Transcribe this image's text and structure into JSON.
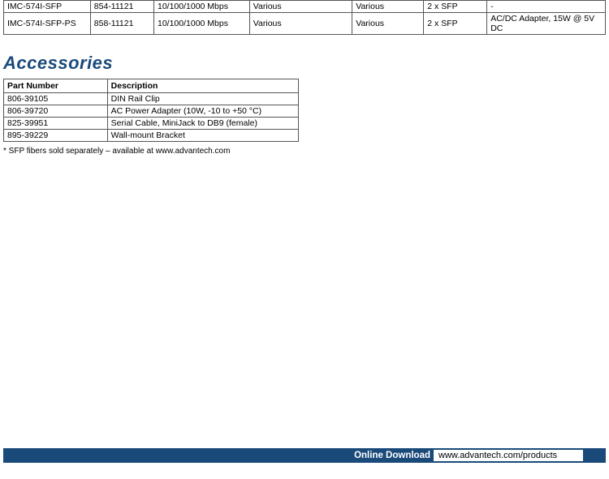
{
  "product_table": {
    "rows": [
      [
        "IMC-574I-SFP",
        "854-11121",
        "10/100/1000 Mbps",
        "Various",
        "Various",
        "2 x SFP",
        "-"
      ],
      [
        "IMC-574I-SFP-PS",
        "858-11121",
        "10/100/1000 Mbps",
        "Various",
        "Various",
        "2 x SFP",
        "AC/DC Adapter, 15W @ 5V DC"
      ]
    ]
  },
  "section_title": "Accessories",
  "accessories_table": {
    "headers": [
      "Part Number",
      "Description"
    ],
    "rows": [
      [
        "806-39105",
        "DIN Rail Clip"
      ],
      [
        "806-39720",
        "AC Power Adapter (10W, -10 to +50 °C)"
      ],
      [
        "825-39951",
        "Serial Cable, MiniJack to DB9 (female)"
      ],
      [
        "895-39229",
        "Wall-mount Bracket"
      ]
    ]
  },
  "footnote": "* SFP fibers sold separately – available at www.advantech.com",
  "footer": {
    "label": "Online Download",
    "url": "www.advantech.com/products"
  },
  "colors": {
    "brand_blue": "#1a4a7a",
    "border": "#555555",
    "bg": "#ffffff"
  }
}
